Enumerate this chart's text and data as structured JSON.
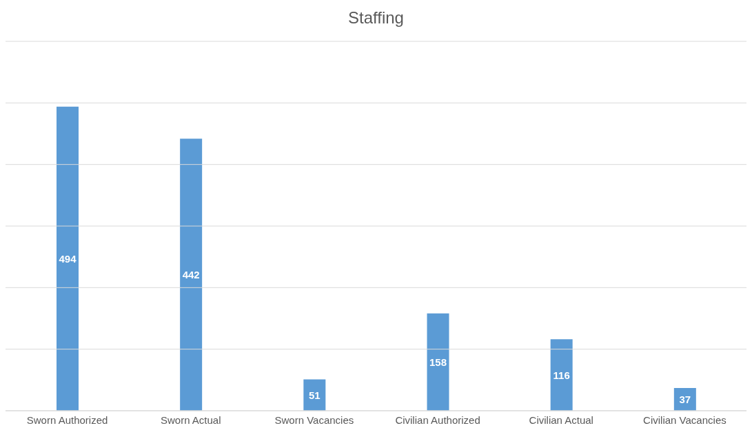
{
  "chart_data": {
    "type": "bar",
    "title": "Staffing",
    "categories": [
      "Sworn Authorized",
      "Sworn Actual",
      "Sworn Vacancies",
      "Civilian Authorized",
      "Civilian Actual",
      "Civilian Vacancies"
    ],
    "values": [
      494,
      442,
      51,
      158,
      116,
      37
    ],
    "color": "#5b9bd5",
    "ylim": [
      0,
      600
    ],
    "yticks": [
      {
        "value": 0,
        "label": null
      },
      {
        "value": 100,
        "label": null
      },
      {
        "value": 200,
        "label": null
      },
      {
        "value": 300,
        "label": null
      },
      {
        "value": 400,
        "label": null
      },
      {
        "value": 500,
        "label": null
      },
      {
        "value": 600,
        "label": null
      }
    ],
    "grid": "y",
    "tick_labels": "x",
    "data_labels": true
  }
}
